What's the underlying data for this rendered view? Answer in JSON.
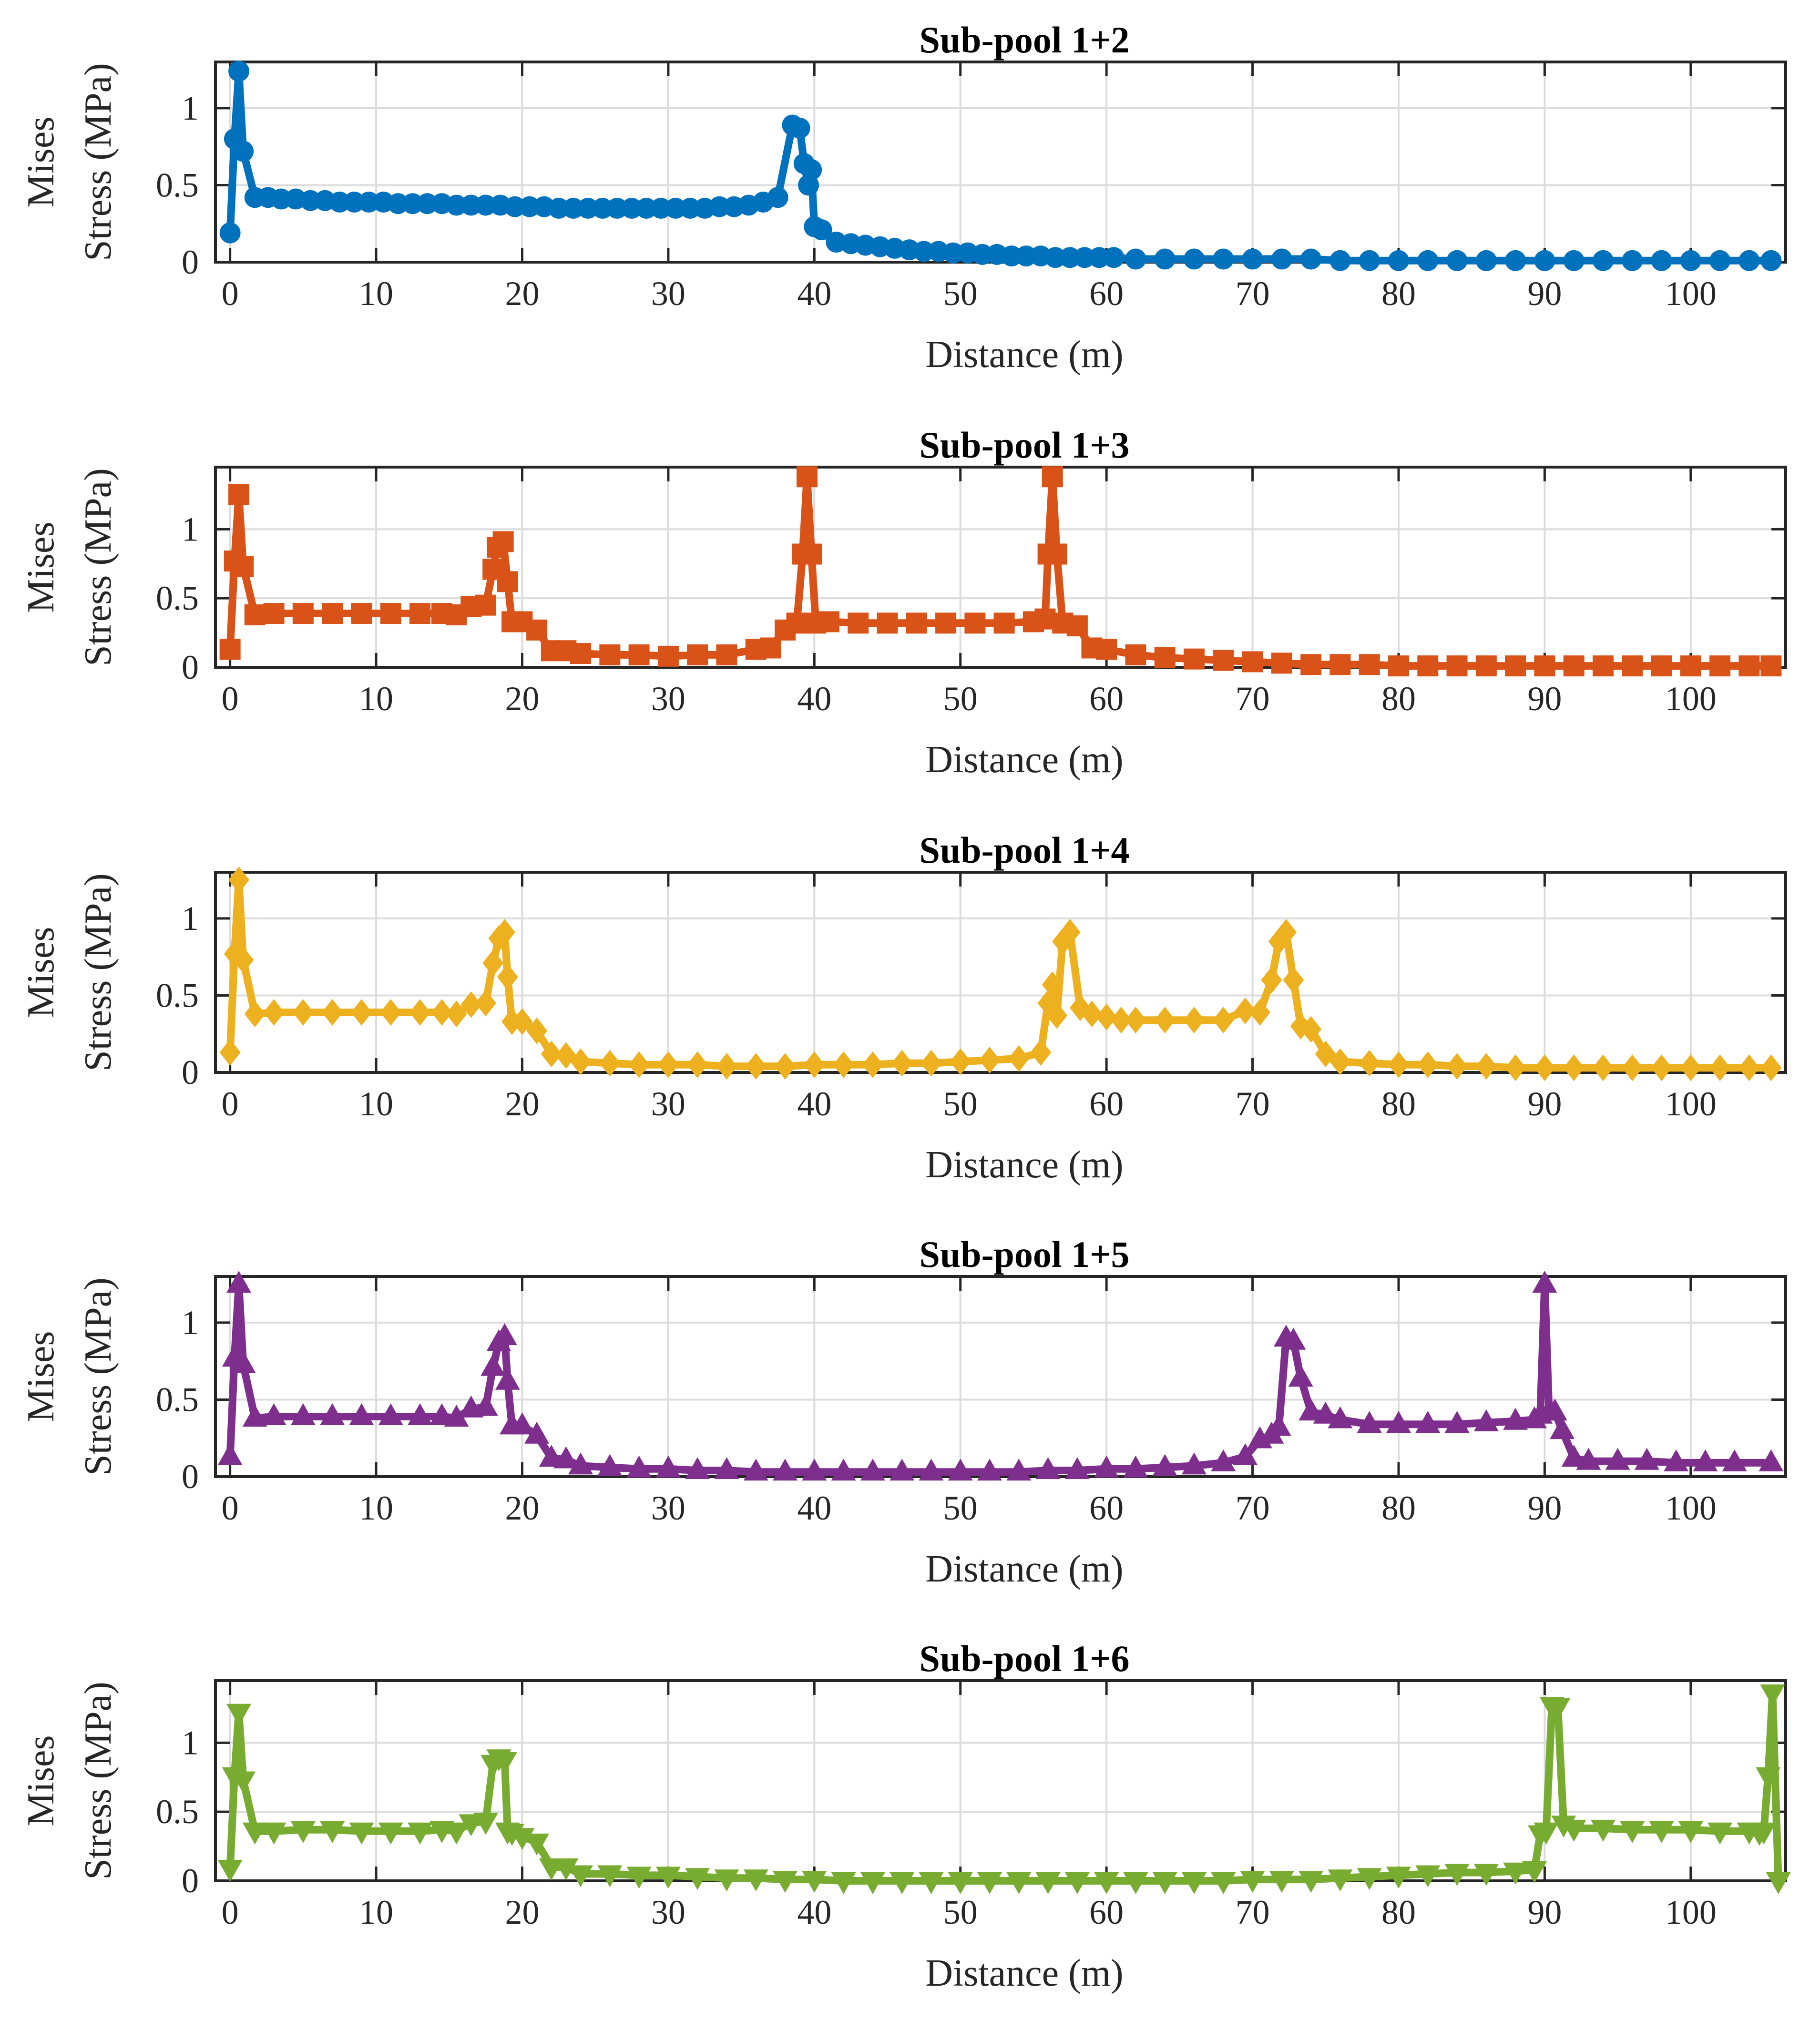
{
  "chart_data": [
    {
      "type": "line",
      "title": "Sub-pool 1+2",
      "xlabel": "Distance (m)",
      "ylabel": [
        "Mises",
        "Stress (MPa)"
      ],
      "xlim": [
        -1,
        106.5
      ],
      "ylim": [
        0,
        1.3
      ],
      "xticks": [
        "0",
        "10",
        "20",
        "30",
        "40",
        "50",
        "60",
        "70",
        "80",
        "90",
        "100"
      ],
      "yticks": [
        "0",
        "0.5",
        "1"
      ],
      "grid": true,
      "color": "#0072BD",
      "marker": "circle",
      "series": [
        {
          "x": [
            0,
            0.3,
            0.6,
            0.9,
            1.7,
            2.6,
            3.5,
            4.5,
            5.5,
            6.5,
            7.5,
            8.5,
            9.5,
            10.5,
            11.5,
            12.5,
            13.5,
            14.5,
            15.5,
            16.5,
            17.5,
            18.5,
            19.5,
            20.5,
            21.5,
            22.5,
            23.5,
            24.5,
            25.5,
            26.5,
            27.5,
            28.5,
            29.5,
            30.5,
            31.5,
            32.5,
            33.5,
            34.5,
            35.5,
            36.5,
            37.5,
            38.5,
            39.0,
            39.3,
            39.6,
            39.8,
            40.0,
            40.5,
            41.5,
            42.5,
            43.5,
            44.5,
            45.5,
            46.5,
            47.5,
            48.5,
            49.5,
            50.5,
            51.5,
            52.5,
            53.5,
            54.5,
            55.5,
            56.5,
            57.5,
            58.5,
            59.5,
            60.5,
            62,
            64,
            66,
            68,
            70,
            72,
            74,
            76,
            78,
            80,
            82,
            84,
            86,
            88,
            90,
            92,
            94,
            96,
            98,
            100,
            102,
            104,
            105.5
          ],
          "y": [
            0.19,
            0.8,
            1.24,
            0.72,
            0.42,
            0.42,
            0.41,
            0.41,
            0.4,
            0.4,
            0.39,
            0.39,
            0.39,
            0.39,
            0.38,
            0.38,
            0.38,
            0.38,
            0.37,
            0.37,
            0.37,
            0.37,
            0.36,
            0.36,
            0.36,
            0.35,
            0.35,
            0.35,
            0.35,
            0.35,
            0.35,
            0.35,
            0.35,
            0.35,
            0.35,
            0.35,
            0.36,
            0.36,
            0.37,
            0.39,
            0.42,
            0.89,
            0.87,
            0.64,
            0.5,
            0.6,
            0.23,
            0.21,
            0.13,
            0.12,
            0.11,
            0.1,
            0.09,
            0.08,
            0.07,
            0.07,
            0.06,
            0.06,
            0.05,
            0.05,
            0.04,
            0.04,
            0.04,
            0.03,
            0.03,
            0.03,
            0.03,
            0.03,
            0.02,
            0.02,
            0.02,
            0.02,
            0.02,
            0.02,
            0.02,
            0.01,
            0.01,
            0.01,
            0.01,
            0.01,
            0.01,
            0.01,
            0.01,
            0.01,
            0.01,
            0.01,
            0.01,
            0.01,
            0.01,
            0.01,
            0.01
          ]
        }
      ]
    },
    {
      "type": "line",
      "title": "Sub-pool 1+3",
      "xlabel": "Distance (m)",
      "ylabel": [
        "Mises",
        "Stress (MPa)"
      ],
      "xlim": [
        -1,
        106.5
      ],
      "ylim": [
        0,
        1.45
      ],
      "xticks": [
        "0",
        "10",
        "20",
        "30",
        "40",
        "50",
        "60",
        "70",
        "80",
        "90",
        "100"
      ],
      "yticks": [
        "0",
        "0.5",
        "1"
      ],
      "grid": true,
      "color": "#D95319",
      "marker": "square",
      "series": [
        {
          "x": [
            0,
            0.3,
            0.6,
            0.9,
            1.7,
            3,
            5,
            7,
            9,
            11,
            13,
            14.5,
            15.5,
            16.5,
            17.5,
            18.0,
            18.3,
            18.7,
            19.0,
            19.3,
            20,
            21,
            22,
            23,
            24,
            26,
            28,
            30,
            32,
            34,
            36,
            37,
            38,
            38.8,
            39.2,
            39.5,
            39.8,
            40.1,
            41,
            43,
            45,
            47,
            49,
            51,
            53,
            55,
            55.8,
            56.0,
            56.3,
            56.6,
            57,
            58,
            59,
            60,
            62,
            64,
            66,
            68,
            70,
            72,
            74,
            76,
            78,
            80,
            82,
            84,
            86,
            88,
            90,
            92,
            94,
            96,
            98,
            100,
            102,
            104,
            105.5
          ],
          "y": [
            0.13,
            0.77,
            1.25,
            0.73,
            0.38,
            0.39,
            0.39,
            0.39,
            0.39,
            0.39,
            0.39,
            0.39,
            0.38,
            0.44,
            0.45,
            0.71,
            0.87,
            0.91,
            0.62,
            0.33,
            0.33,
            0.27,
            0.12,
            0.12,
            0.1,
            0.09,
            0.09,
            0.08,
            0.09,
            0.09,
            0.13,
            0.14,
            0.27,
            0.32,
            0.82,
            1.38,
            0.82,
            0.32,
            0.33,
            0.32,
            0.32,
            0.32,
            0.32,
            0.32,
            0.32,
            0.33,
            0.35,
            0.82,
            1.38,
            0.82,
            0.32,
            0.3,
            0.14,
            0.13,
            0.09,
            0.07,
            0.06,
            0.05,
            0.04,
            0.03,
            0.02,
            0.02,
            0.02,
            0.01,
            0.01,
            0.01,
            0.01,
            0.01,
            0.01,
            0.01,
            0.01,
            0.01,
            0.01,
            0.01,
            0.01,
            0.01,
            0.01
          ]
        }
      ]
    },
    {
      "type": "line",
      "title": "Sub-pool 1+4",
      "xlabel": "Distance (m)",
      "ylabel": [
        "Mises",
        "Stress (MPa)"
      ],
      "xlim": [
        -1,
        106.5
      ],
      "ylim": [
        0,
        1.3
      ],
      "xticks": [
        "0",
        "10",
        "20",
        "30",
        "40",
        "50",
        "60",
        "70",
        "80",
        "90",
        "100"
      ],
      "yticks": [
        "0",
        "0.5",
        "1"
      ],
      "grid": true,
      "color": "#EDB120",
      "marker": "diamond",
      "series": [
        {
          "x": [
            0,
            0.3,
            0.6,
            0.9,
            1.7,
            3,
            5,
            7,
            9,
            11,
            13,
            14.5,
            15.5,
            16.5,
            17.5,
            18.0,
            18.4,
            18.8,
            19.0,
            19.3,
            20,
            21,
            22,
            23,
            24,
            26,
            28,
            30,
            32,
            34,
            36,
            38,
            40,
            42,
            44,
            46,
            48,
            50,
            52,
            54,
            55.5,
            56.0,
            56.3,
            56.6,
            57.0,
            57.5,
            58.2,
            59.0,
            60,
            61,
            62,
            64,
            66,
            68,
            69.5,
            70.5,
            71.3,
            71.8,
            72.3,
            72.8,
            73.3,
            74,
            75,
            76,
            78,
            80,
            82,
            84,
            86,
            88,
            90,
            92,
            94,
            96,
            98,
            100,
            102,
            104,
            105.5
          ],
          "y": [
            0.13,
            0.77,
            1.25,
            0.73,
            0.38,
            0.39,
            0.39,
            0.39,
            0.39,
            0.39,
            0.39,
            0.39,
            0.38,
            0.44,
            0.45,
            0.71,
            0.87,
            0.91,
            0.62,
            0.33,
            0.33,
            0.27,
            0.12,
            0.11,
            0.07,
            0.06,
            0.05,
            0.05,
            0.05,
            0.04,
            0.04,
            0.04,
            0.05,
            0.05,
            0.05,
            0.06,
            0.06,
            0.07,
            0.08,
            0.09,
            0.13,
            0.45,
            0.57,
            0.37,
            0.85,
            0.91,
            0.42,
            0.38,
            0.36,
            0.34,
            0.34,
            0.34,
            0.34,
            0.34,
            0.4,
            0.39,
            0.6,
            0.85,
            0.91,
            0.6,
            0.3,
            0.28,
            0.12,
            0.07,
            0.06,
            0.05,
            0.05,
            0.04,
            0.04,
            0.03,
            0.03,
            0.03,
            0.03,
            0.03,
            0.03,
            0.03,
            0.03,
            0.03,
            0.03
          ]
        }
      ]
    },
    {
      "type": "line",
      "title": "Sub-pool 1+5",
      "xlabel": "Distance (m)",
      "ylabel": [
        "Mises",
        "Stress (MPa)"
      ],
      "xlim": [
        -1,
        106.5
      ],
      "ylim": [
        0,
        1.3
      ],
      "xticks": [
        "0",
        "10",
        "20",
        "30",
        "40",
        "50",
        "60",
        "70",
        "80",
        "90",
        "100"
      ],
      "yticks": [
        "0",
        "0.5",
        "1"
      ],
      "grid": true,
      "color": "#7E2F8E",
      "marker": "triangle-up",
      "series": [
        {
          "x": [
            0,
            0.3,
            0.6,
            0.9,
            1.7,
            3,
            5,
            7,
            9,
            11,
            13,
            14.5,
            15.5,
            16.5,
            17.5,
            18.0,
            18.4,
            18.8,
            19.0,
            19.3,
            20,
            21,
            22,
            23,
            24,
            26,
            28,
            30,
            32,
            34,
            36,
            38,
            40,
            42,
            44,
            46,
            48,
            50,
            52,
            54,
            56,
            58,
            60,
            62,
            64,
            66,
            68,
            69.5,
            70.5,
            71.3,
            71.8,
            72.3,
            72.8,
            73.3,
            74,
            75,
            76,
            78,
            80,
            82,
            84,
            86,
            88,
            89.3,
            89.7,
            90.0,
            90.3,
            90.7,
            91.2,
            92,
            93,
            95,
            97,
            99,
            101,
            103,
            105.5
          ],
          "y": [
            0.13,
            0.77,
            1.25,
            0.73,
            0.38,
            0.39,
            0.39,
            0.39,
            0.39,
            0.39,
            0.39,
            0.39,
            0.38,
            0.44,
            0.45,
            0.71,
            0.87,
            0.91,
            0.62,
            0.33,
            0.33,
            0.27,
            0.12,
            0.11,
            0.07,
            0.06,
            0.05,
            0.05,
            0.04,
            0.04,
            0.03,
            0.03,
            0.03,
            0.03,
            0.03,
            0.03,
            0.03,
            0.03,
            0.03,
            0.03,
            0.04,
            0.04,
            0.05,
            0.05,
            0.06,
            0.07,
            0.09,
            0.13,
            0.24,
            0.27,
            0.32,
            0.9,
            0.88,
            0.64,
            0.42,
            0.4,
            0.37,
            0.34,
            0.34,
            0.34,
            0.34,
            0.35,
            0.36,
            0.37,
            0.4,
            1.25,
            0.42,
            0.42,
            0.3,
            0.12,
            0.1,
            0.1,
            0.1,
            0.09,
            0.09,
            0.09,
            0.09
          ]
        }
      ]
    },
    {
      "type": "line",
      "title": "Sub-pool 1+6",
      "xlabel": "Distance (m)",
      "ylabel": [
        "Mises",
        "Stress (MPa)"
      ],
      "xlim": [
        -1,
        106.5
      ],
      "ylim": [
        0,
        1.45
      ],
      "xticks": [
        "0",
        "10",
        "20",
        "30",
        "40",
        "50",
        "60",
        "70",
        "80",
        "90",
        "100"
      ],
      "yticks": [
        "0",
        "0.5",
        "1"
      ],
      "grid": true,
      "color": "#77AC30",
      "marker": "triangle-down",
      "series": [
        {
          "x": [
            0,
            0.3,
            0.6,
            0.9,
            1.7,
            3,
            5,
            7,
            9,
            11,
            13,
            14.5,
            15.5,
            16.5,
            17.5,
            18.0,
            18.4,
            18.8,
            19.0,
            19.3,
            20,
            21,
            22,
            23,
            24,
            26,
            28,
            30,
            32,
            34,
            36,
            38,
            40,
            42,
            44,
            46,
            48,
            50,
            52,
            54,
            56,
            58,
            60,
            62,
            64,
            66,
            68,
            70,
            72,
            74,
            76,
            78,
            80,
            82,
            84,
            86,
            88,
            89.3,
            89.7,
            90.1,
            90.5,
            90.9,
            91.3,
            92,
            94,
            96,
            98,
            100,
            102,
            104,
            104.7,
            105.0,
            105.3,
            105.6,
            106
          ],
          "y": [
            0.09,
            0.76,
            1.22,
            0.73,
            0.36,
            0.36,
            0.37,
            0.37,
            0.36,
            0.36,
            0.36,
            0.37,
            0.36,
            0.42,
            0.43,
            0.85,
            0.89,
            0.87,
            0.36,
            0.35,
            0.32,
            0.28,
            0.1,
            0.1,
            0.05,
            0.05,
            0.04,
            0.04,
            0.03,
            0.02,
            0.02,
            0.01,
            0.01,
            0.0,
            0.0,
            0.0,
            0.0,
            0.0,
            0.0,
            0.0,
            0.0,
            0.0,
            0.0,
            0.0,
            0.0,
            0.0,
            0.0,
            0.01,
            0.01,
            0.01,
            0.02,
            0.03,
            0.04,
            0.05,
            0.06,
            0.06,
            0.07,
            0.08,
            0.34,
            0.36,
            1.27,
            1.26,
            0.41,
            0.38,
            0.38,
            0.37,
            0.37,
            0.37,
            0.36,
            0.36,
            0.35,
            0.36,
            0.76,
            1.36,
            0.0
          ]
        }
      ]
    }
  ]
}
